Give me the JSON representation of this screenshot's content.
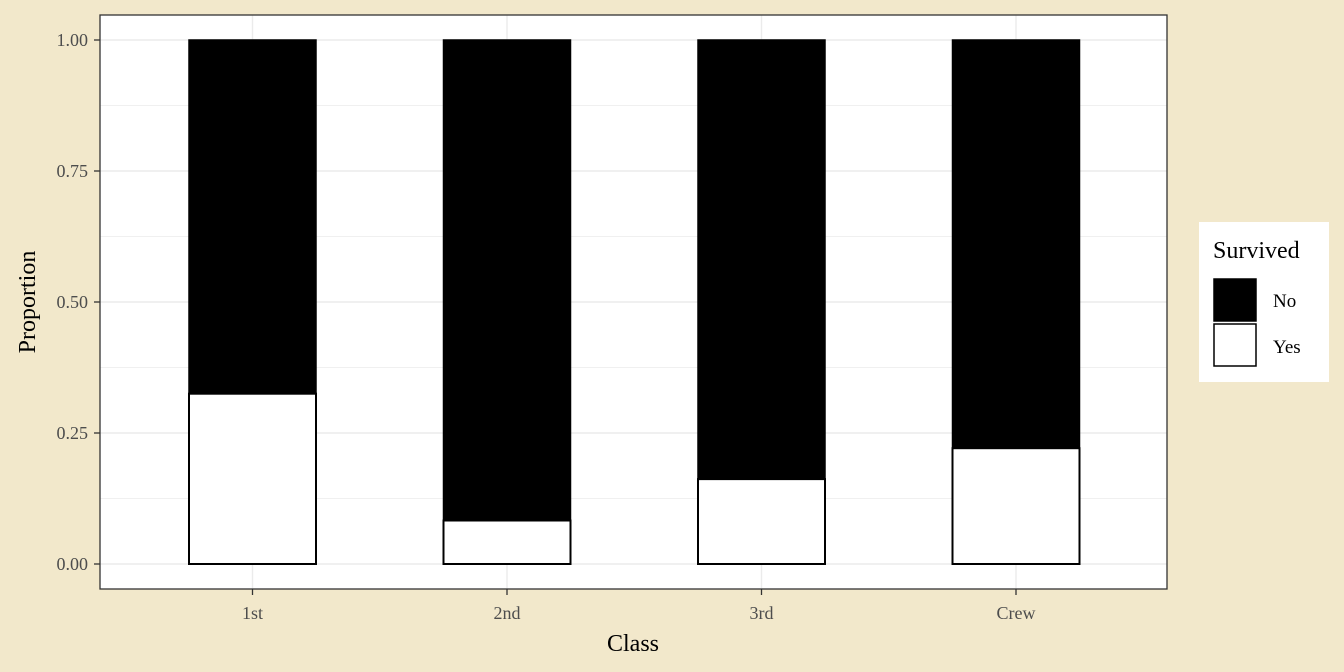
{
  "colors": {
    "background": "#f2e8cb",
    "panel": "#ffffff",
    "grid": "#ebebeb",
    "no_fill": "#000000",
    "yes_fill": "#ffffff",
    "bar_outline": "#000000"
  },
  "chart_data": {
    "type": "bar",
    "stacked": true,
    "xlabel": "Class",
    "ylabel": "Proportion",
    "categories": [
      "1st",
      "2nd",
      "3rd",
      "Crew"
    ],
    "ylim": [
      0,
      1
    ],
    "yticks": [
      "0.00",
      "0.25",
      "0.50",
      "0.75",
      "1.00"
    ],
    "ytick_values": [
      0,
      0.25,
      0.5,
      0.75,
      1
    ],
    "grid": true,
    "legend": {
      "title": "Survived",
      "position": "right"
    },
    "series": [
      {
        "name": "No",
        "color": "#000000",
        "values": [
          0.675,
          0.917,
          0.838,
          0.779
        ]
      },
      {
        "name": "Yes",
        "color": "#ffffff",
        "values": [
          0.325,
          0.083,
          0.162,
          0.221
        ]
      }
    ]
  }
}
